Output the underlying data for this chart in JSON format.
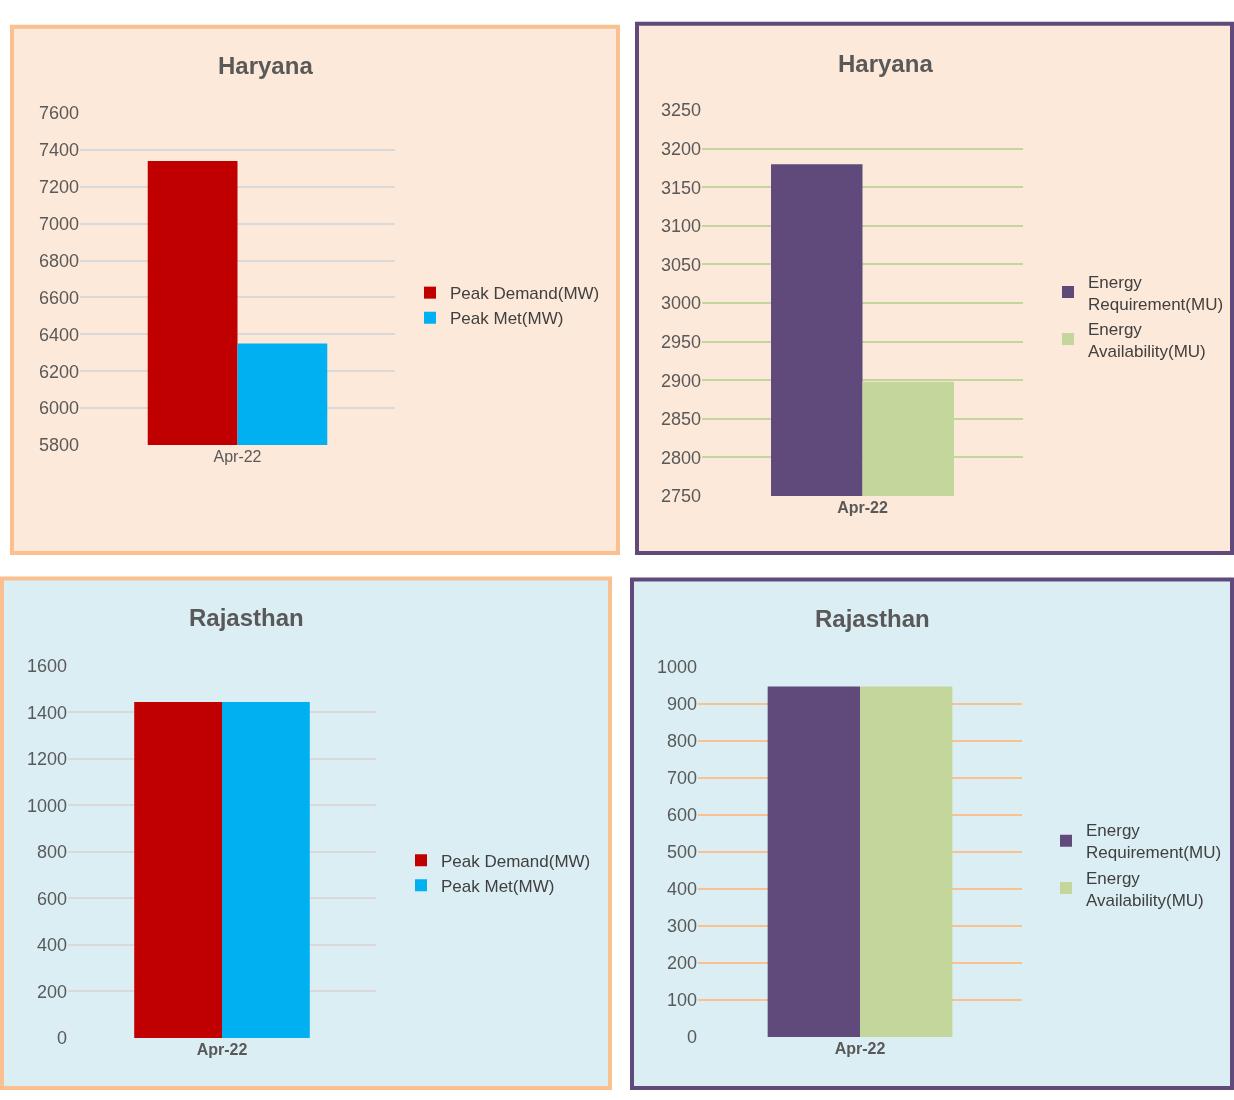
{
  "chart_data": [
    {
      "type": "bar",
      "title": "Haryana",
      "categories": [
        "Apr-22"
      ],
      "series": [
        {
          "name": "Peak Demand(MW)",
          "color": "#c00000",
          "values": [
            7340
          ]
        },
        {
          "name": "Peak Met(MW)",
          "color": "#00b0f0",
          "values": [
            6350
          ]
        }
      ],
      "ylim": [
        5800,
        7600
      ],
      "yticks": [
        5800,
        6000,
        6200,
        6400,
        6600,
        6800,
        7000,
        7200,
        7400,
        7600
      ],
      "grid": "y",
      "legend": "right"
    },
    {
      "type": "bar",
      "title": "Haryana",
      "categories": [
        "Apr-22"
      ],
      "series": [
        {
          "name": "Energy Requirement(MU)",
          "color": "#604a7b",
          "values": [
            3180
          ]
        },
        {
          "name": "Energy Availability(MU)",
          "color": "#c3d69b",
          "values": [
            2898
          ]
        }
      ],
      "ylim": [
        2750,
        3250
      ],
      "yticks": [
        2750,
        2800,
        2850,
        2900,
        2950,
        3000,
        3050,
        3100,
        3150,
        3200,
        3250
      ],
      "grid": "y",
      "legend": "right"
    },
    {
      "type": "bar",
      "title": "Rajasthan",
      "categories": [
        "Apr-22"
      ],
      "series": [
        {
          "name": "Peak Demand(MW)",
          "color": "#c00000",
          "values": [
            1445
          ]
        },
        {
          "name": "Peak Met(MW)",
          "color": "#00b0f0",
          "values": [
            1445
          ]
        }
      ],
      "ylim": [
        0,
        1600
      ],
      "yticks": [
        0,
        200,
        400,
        600,
        800,
        1000,
        1200,
        1400,
        1600
      ],
      "grid": "y",
      "legend": "right"
    },
    {
      "type": "bar",
      "title": "Rajasthan",
      "categories": [
        "Apr-22"
      ],
      "series": [
        {
          "name": "Energy Requirement(MU)",
          "color": "#604a7b",
          "values": [
            947
          ]
        },
        {
          "name": "Energy Availability(MU)",
          "color": "#c3d69b",
          "values": [
            947
          ]
        }
      ],
      "ylim": [
        0,
        1000
      ],
      "yticks": [
        0,
        100,
        200,
        300,
        400,
        500,
        600,
        700,
        800,
        900,
        1000
      ],
      "grid": "y",
      "legend": "right"
    }
  ]
}
